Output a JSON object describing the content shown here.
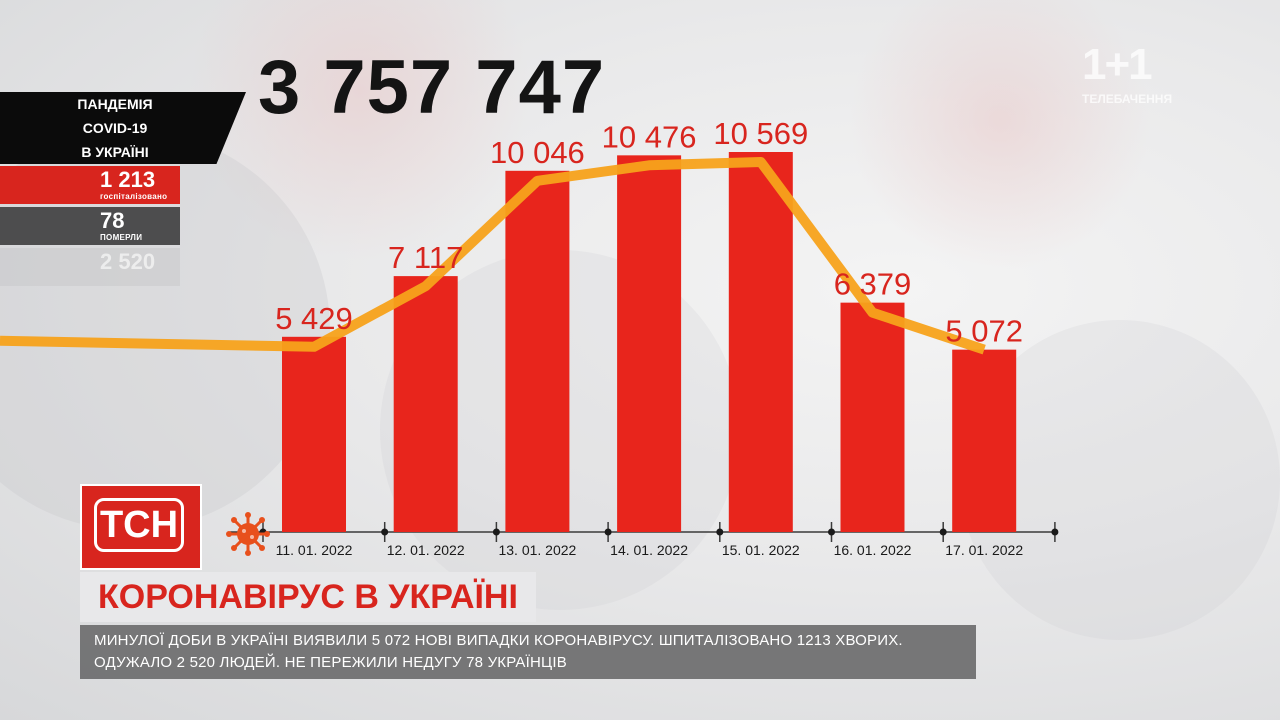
{
  "total_cases": "3 757 747",
  "stats": {
    "title_lines": [
      "ПАНДЕМІЯ",
      "COVID-19",
      "В УКРАЇНІ"
    ],
    "hospitalized_value": "1 213",
    "hospitalized_label": "госпіталізовано",
    "died_value": "78",
    "died_label": "ПОМЕРЛИ",
    "third_value": "2 520"
  },
  "channel_logo": "1+1",
  "channel_sub": "ТЕЛЕБАЧЕННЯ",
  "brand": {
    "logo_text": "ТСН",
    "red": "#d8251e",
    "orange": "#f7a21b"
  },
  "headline": "КОРОНАВІРУС В УКРАЇНІ",
  "ticker": "МИНУЛОЇ ДОБИ В УКРАЇНІ ВИЯВИЛИ 5 072 НОВІ ВИПАДКИ КОРОНАВІРУСУ. ШПИТАЛІЗОВАНО 1213 ХВОРИХ. ОДУЖАЛО 2 520 ЛЮДЕЙ. НЕ ПЕРЕЖИЛИ НЕДУГУ 78 УКРАЇНЦІВ",
  "chart_data": {
    "type": "bar",
    "categories": [
      "11. 01. 2022",
      "12. 01. 2022",
      "13. 01. 2022",
      "14. 01. 2022",
      "15. 01. 2022",
      "16. 01. 2022",
      "17. 01. 2022"
    ],
    "values": [
      5429,
      7117,
      10046,
      10476,
      10569,
      6379,
      5072
    ],
    "value_labels": [
      "5 429",
      "7 117",
      "10 046",
      "10 476",
      "10 569",
      "6 379",
      "5 072"
    ],
    "trend_line": [
      5429,
      7117,
      10046,
      10476,
      10569,
      6379,
      5072
    ],
    "bar_color": "#e8251c",
    "line_color": "#f7a21b",
    "grid": false
  }
}
